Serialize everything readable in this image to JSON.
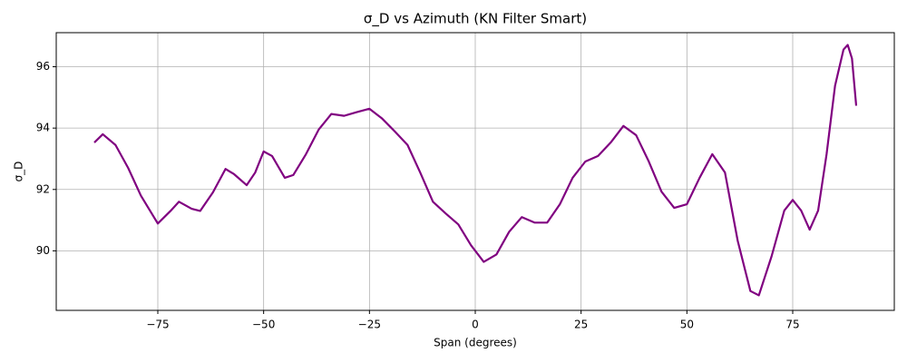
{
  "chart_data": {
    "type": "line",
    "title": "σ_D vs Azimuth (KN Filter Smart)",
    "xlabel": "Span (degrees)",
    "ylabel": "σ_D",
    "x": [
      -90,
      -88,
      -85,
      -82,
      -79,
      -75,
      -72,
      -70,
      -67,
      -65,
      -62,
      -59,
      -57,
      -54,
      -52,
      -50,
      -48,
      -45,
      -43,
      -40,
      -37,
      -34,
      -31,
      -28,
      -25,
      -22,
      -19,
      -16,
      -13,
      -10,
      -7,
      -4,
      -1,
      2,
      5,
      8,
      11,
      14,
      17,
      20,
      23,
      26,
      29,
      32,
      35,
      38,
      41,
      44,
      47,
      50,
      53,
      56,
      59,
      62,
      65,
      67,
      70,
      73,
      75,
      77,
      79,
      81,
      83,
      85,
      87,
      88,
      89,
      90
    ],
    "series": [
      {
        "name": "σ_D",
        "color": "purple",
        "values": [
          93.53,
          93.8,
          93.45,
          92.7,
          91.8,
          90.89,
          91.3,
          91.6,
          91.37,
          91.3,
          91.9,
          92.67,
          92.5,
          92.14,
          92.55,
          93.24,
          93.09,
          92.38,
          92.47,
          93.15,
          93.95,
          94.46,
          94.4,
          94.52,
          94.63,
          94.31,
          93.89,
          93.45,
          92.55,
          91.6,
          91.22,
          90.86,
          90.18,
          89.64,
          89.88,
          90.62,
          91.1,
          90.92,
          90.92,
          91.52,
          92.38,
          92.91,
          93.09,
          93.53,
          94.07,
          93.77,
          92.91,
          91.93,
          91.4,
          91.52,
          92.38,
          93.15,
          92.55,
          90.33,
          88.69,
          88.55,
          89.82,
          91.31,
          91.66,
          91.31,
          90.69,
          91.31,
          93.15,
          95.38,
          96.56,
          96.71,
          96.27,
          94.73
        ]
      }
    ],
    "xlim": [
      -99,
      99
    ],
    "ylim": [
      88.06,
      97.11
    ],
    "xticks": [
      {
        "value": -75,
        "label": "−75"
      },
      {
        "value": -50,
        "label": "−50"
      },
      {
        "value": -25,
        "label": "−25"
      },
      0,
      25,
      50,
      75
    ],
    "yticks": [
      90,
      92,
      94,
      96
    ],
    "grid": true
  }
}
